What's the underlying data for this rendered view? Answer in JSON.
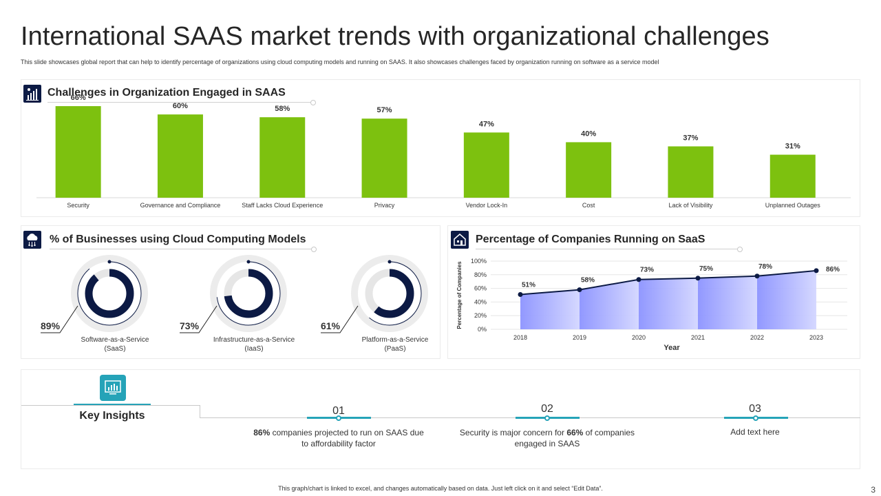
{
  "title": "International SAAS market trends with organizational challenges",
  "subtitle": "This slide showcases global report that can help to identify percentage of organizations using cloud computing models and running on SAAS. It also showcases challenges faced by organization running on software as a service model",
  "colors": {
    "bar": "#7dc10f",
    "navy": "#0c1a44",
    "teal": "#25a3b8",
    "area": "#a3a9ff"
  },
  "sections": {
    "bar_title": "Challenges in Organization Engaged in SAAS",
    "donut_title": "% of Businesses using Cloud Computing Models",
    "line_title": "Percentage of Companies Running on SaaS"
  },
  "chart_data": [
    {
      "type": "bar",
      "title": "Challenges in Organization Engaged in SAAS",
      "categories": [
        "Security",
        "Governance and Compliance",
        "Staff Lacks Cloud Experience",
        "Privacy",
        "Vendor Lock-In",
        "Cost",
        "Lack of Visibility",
        "Unplanned Outages"
      ],
      "values": [
        66,
        60,
        58,
        57,
        47,
        40,
        37,
        31
      ],
      "value_labels": [
        "66%",
        "60%",
        "58%",
        "57%",
        "47%",
        "40%",
        "37%",
        "31%"
      ],
      "ylim": [
        0,
        70
      ],
      "grid": false
    },
    {
      "type": "pie",
      "title": "% of Businesses using Cloud Computing Models",
      "items": [
        {
          "label_line1": "Software-as-a-Service",
          "label_line2": "(SaaS)",
          "value": 89,
          "value_label": "89%"
        },
        {
          "label_line1": "Infrastructure-as-a-Service",
          "label_line2": "(IaaS)",
          "value": 73,
          "value_label": "73%"
        },
        {
          "label_line1": "Platform-as-a-Service",
          "label_line2": "(PaaS)",
          "value": 61,
          "value_label": "61%"
        }
      ]
    },
    {
      "type": "area",
      "title": "Percentage of Companies Running on SaaS",
      "x": [
        "2018",
        "2019",
        "2020",
        "2021",
        "2022",
        "2023"
      ],
      "values": [
        51,
        58,
        73,
        75,
        78,
        86
      ],
      "value_labels": [
        "51%",
        "58%",
        "73%",
        "75%",
        "78%",
        "86%"
      ],
      "xlabel": "Year",
      "ylabel": "Percentage of Companies",
      "yticks": [
        "0%",
        "20%",
        "40%",
        "60%",
        "80%",
        "100%"
      ],
      "ylim": [
        0,
        100
      ],
      "grid": true
    }
  ],
  "insights": {
    "heading": "Key Insights",
    "items": [
      {
        "num": "01",
        "bold": "86%",
        "text": " companies projected to run on SAAS due to affordability  factor"
      },
      {
        "num": "02",
        "pre": "Security is major concern for ",
        "bold": "66%",
        "post": " of companies engaged in SAAS"
      },
      {
        "num": "03",
        "text": "Add text here"
      }
    ]
  },
  "footer_note": "This graph/chart is linked to excel, and changes automatically based on data. Just left click on it and select “Edit Data”.",
  "page_number": "3"
}
